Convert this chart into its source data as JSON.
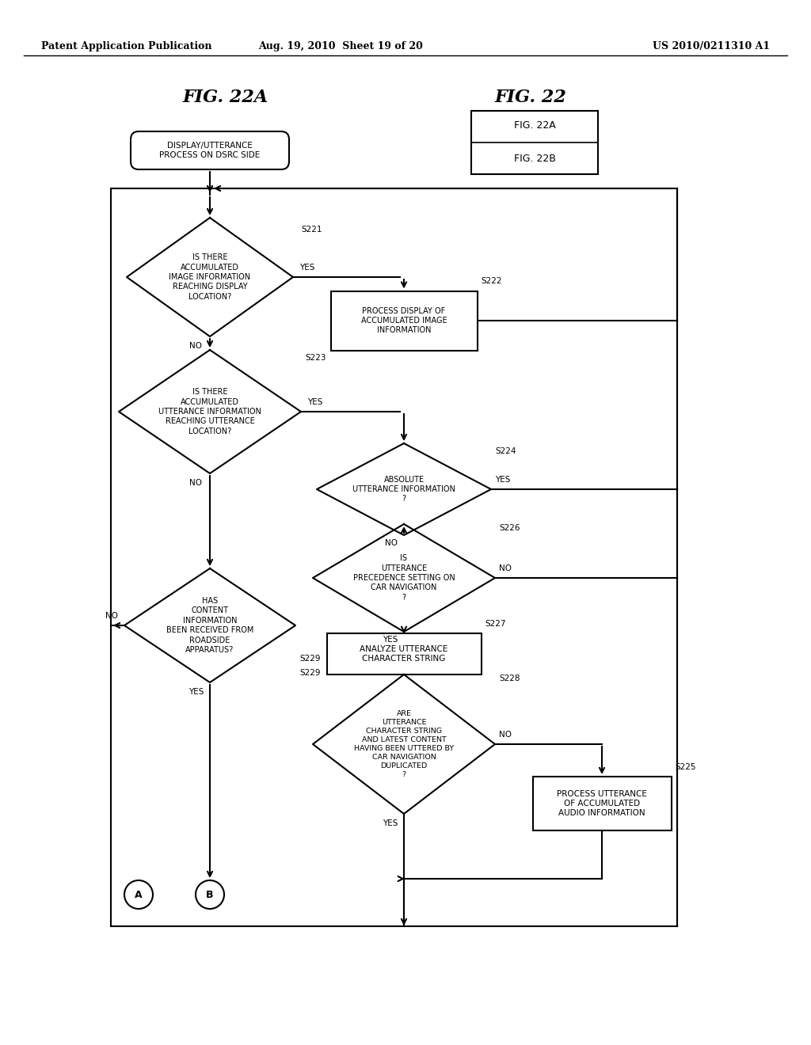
{
  "header_left": "Patent Application Publication",
  "header_mid": "Aug. 19, 2010  Sheet 19 of 20",
  "header_right": "US 2010/0211310 A1",
  "fig_label_main": "FIG. 22A",
  "fig_label_side_title": "FIG. 22",
  "fig_label_side_22a": "FIG. 22A",
  "fig_label_side_22b": "FIG. 22B",
  "start_label": "DISPLAY/UTTERANCE\nPROCESS ON DSRC SIDE",
  "d221_label": "IS THERE\nACCUMULATED\nIMAGE INFORMATION\nREACHING DISPLAY\nLOCATION?",
  "d221_step": "S221",
  "r222_label": "PROCESS DISPLAY OF\nACCUMULATED IMAGE\nINFORMATION",
  "r222_step": "S222",
  "d223_label": "IS THERE\nACCUMULATED\nUTTERANCE INFORMATION\nREACHING UTTERANCE\nLOCATION?",
  "d223_step": "S223",
  "d224_label": "ABSOLUTE\nUTTERANCE INFORMATION\n?",
  "d224_step": "S224",
  "d226_label": "IS\nUTTERANCE\nPRECEDENCE SETTING ON\nCAR NAVIGATION\n?",
  "d226_step": "S226",
  "r227_label": "ANALYZE UTTERANCE\nCHARACTER STRING",
  "r227_step": "S227",
  "d228_label": "ARE\nUTTERANCE\nCHARACTER STRING\nAND LATEST CONTENT\nHAVING BEEN UTTERED BY\nCAR NAVIGATION\nDUPLICATED\n?",
  "d228_step": "S228",
  "r225_label": "PROCESS UTTERANCE\nOF ACCUMULATED\nAUDIO INFORMATION",
  "r225_step": "S225",
  "d229_label": "HAS\nCONTENT\nINFORMATION\nBEEN RECEIVED FROM\nROADSIDE\nAPPARATUS?",
  "d229_step": "S229",
  "term_a": "A",
  "term_b": "B",
  "bg_color": "#ffffff",
  "line_color": "#000000",
  "text_color": "#000000"
}
